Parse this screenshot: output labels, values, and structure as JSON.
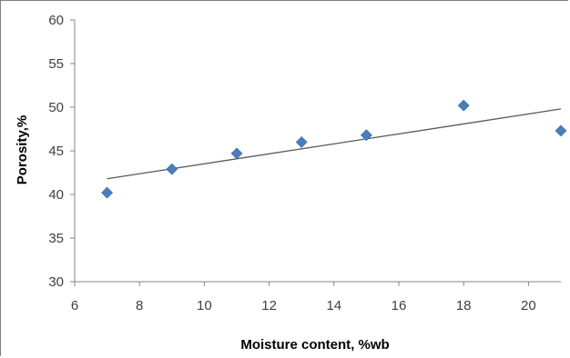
{
  "chart_data": {
    "type": "scatter",
    "title": "",
    "xlabel": "Moisture content, %wb",
    "ylabel": "Porosity,%",
    "xlim": [
      6,
      21
    ],
    "ylim": [
      30,
      60
    ],
    "x_ticks": [
      6,
      8,
      10,
      12,
      14,
      16,
      18,
      20
    ],
    "y_ticks": [
      30,
      35,
      40,
      45,
      50,
      55,
      60
    ],
    "grid": false,
    "legend": "none",
    "series": [
      {
        "x": [
          7,
          9,
          11,
          13,
          15,
          18,
          21
        ],
        "y": [
          40.2,
          42.9,
          44.7,
          46.0,
          46.8,
          50.2,
          47.3
        ],
        "marker": "diamond",
        "color": "#4a7ebb"
      }
    ],
    "trendline": {
      "type": "linear",
      "x": [
        7,
        21
      ],
      "y": [
        41.8,
        49.8
      ],
      "color": "#595959"
    },
    "axis_color": "#868686"
  }
}
